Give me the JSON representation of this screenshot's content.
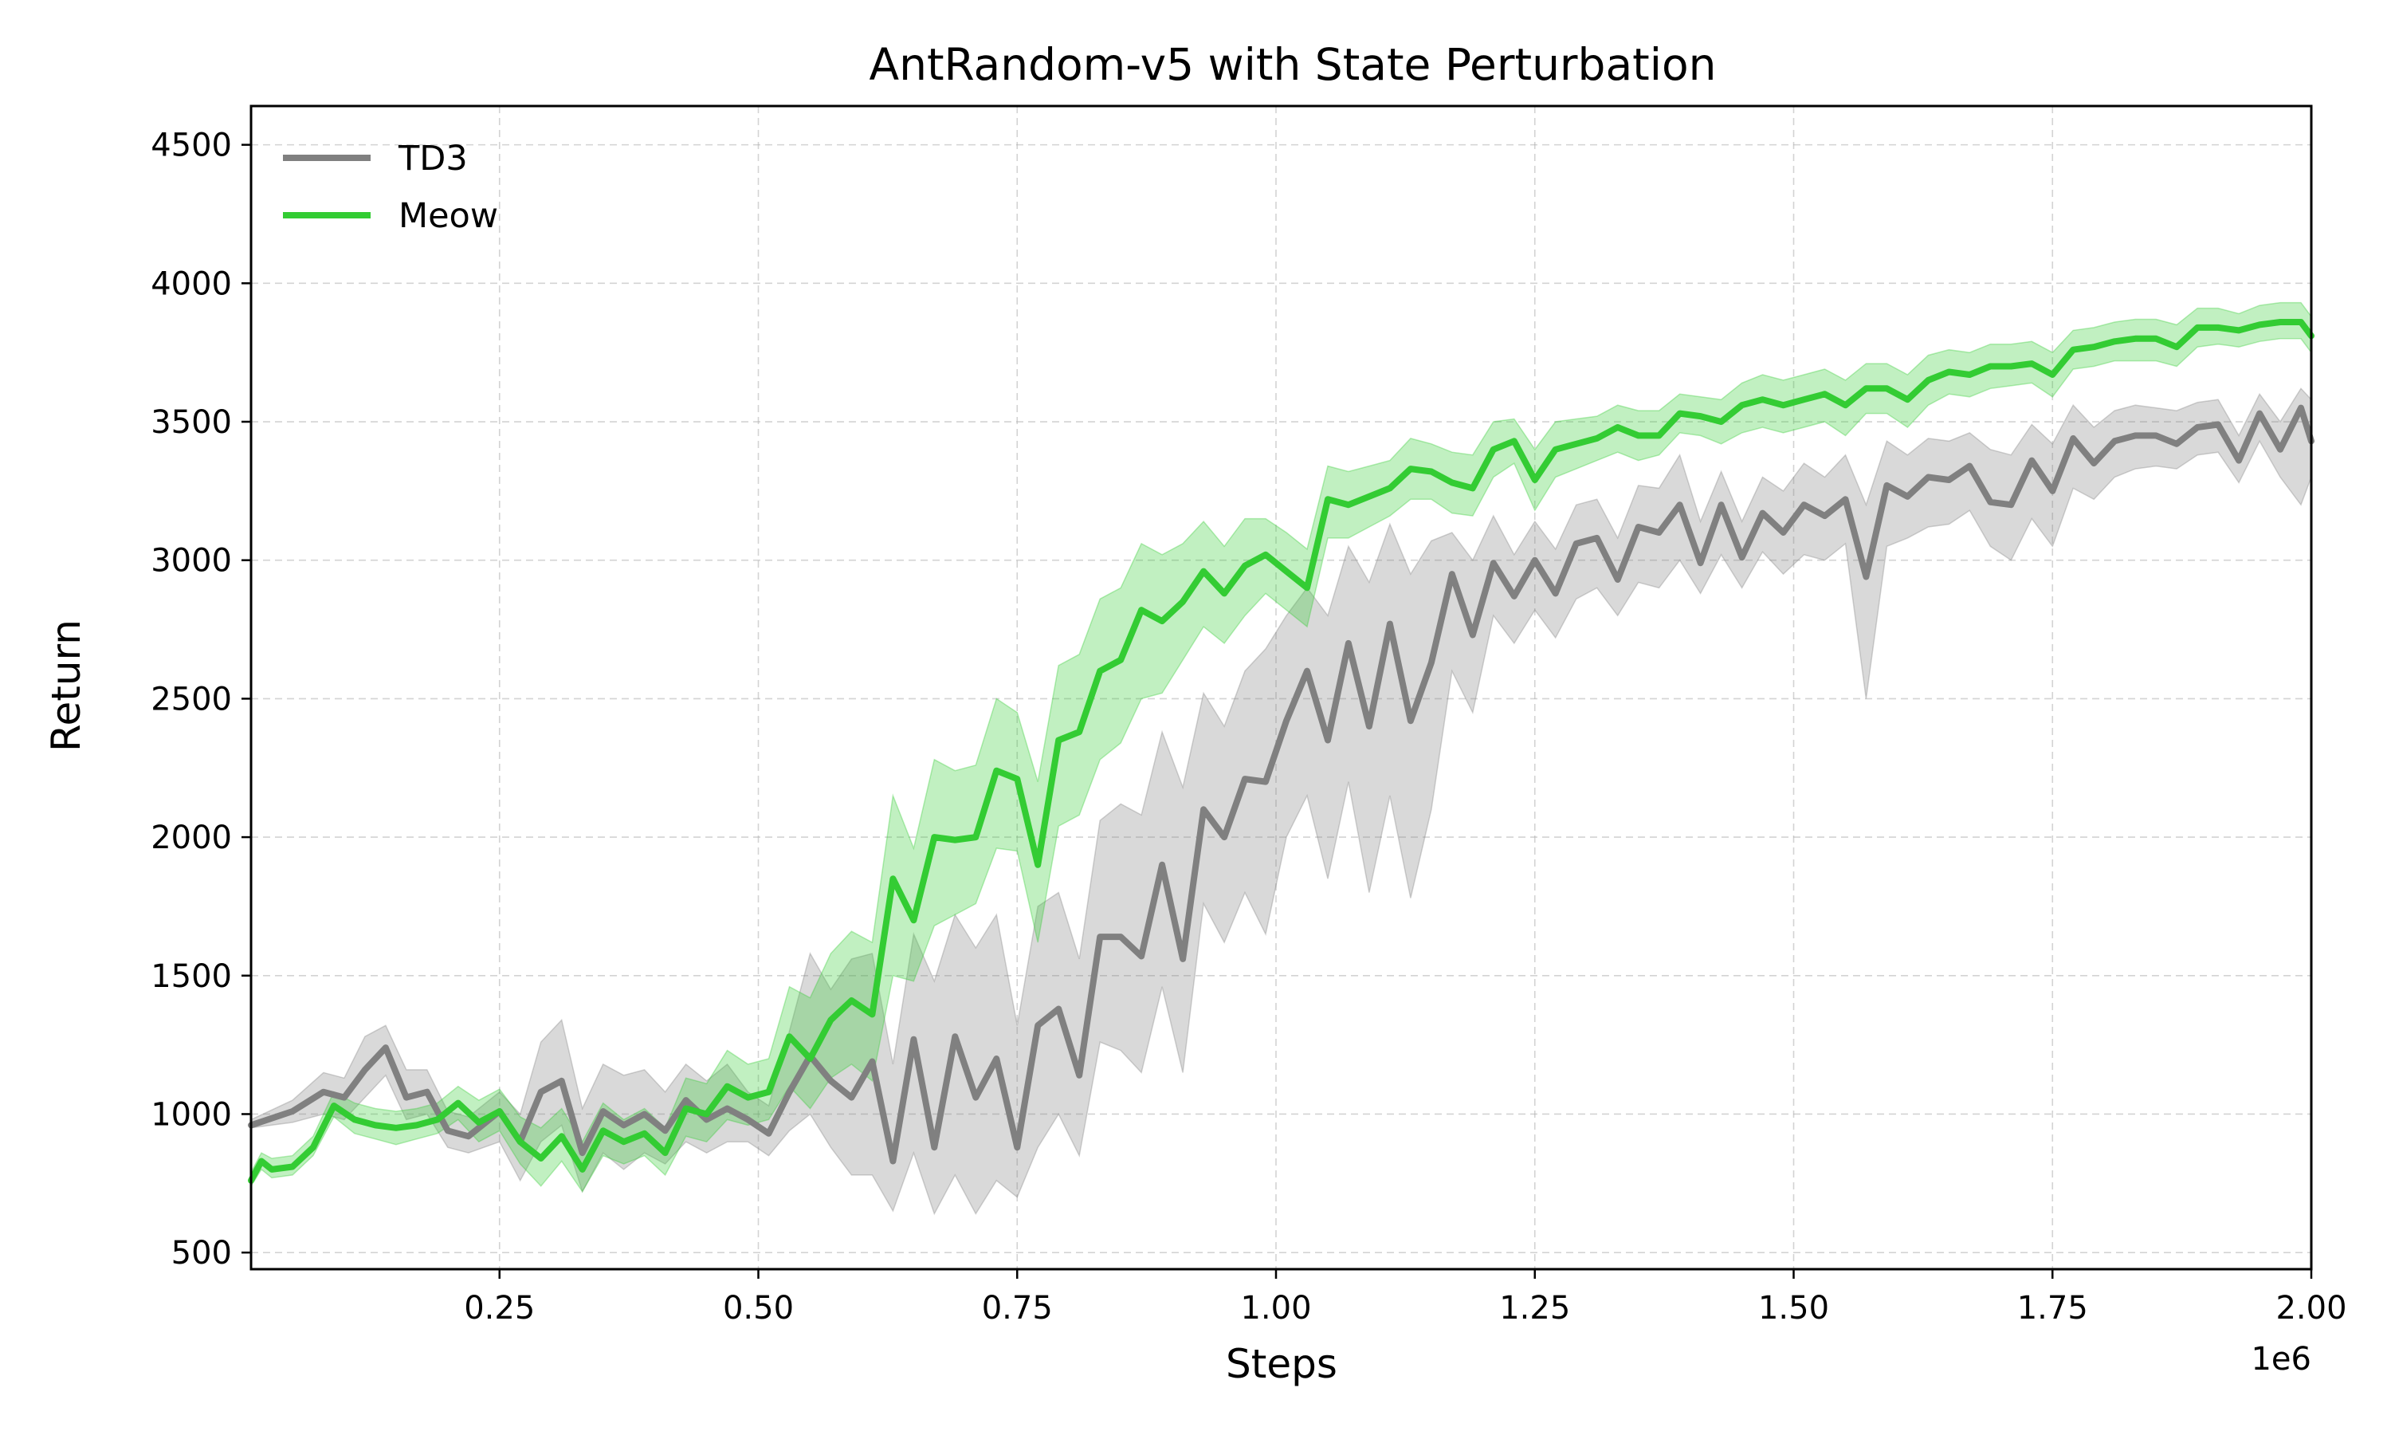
{
  "chart_data": {
    "type": "line",
    "title": "AntRandom-v5 with State Perturbation",
    "xlabel": "Steps",
    "ylabel": "Return",
    "x_offset_label": "1e6",
    "xlim": [
      0.01,
      2.0
    ],
    "ylim": [
      440,
      4640
    ],
    "xticks": [
      0.25,
      0.5,
      0.75,
      1.0,
      1.25,
      1.5,
      1.75,
      2.0
    ],
    "xtick_labels": [
      "0.25",
      "0.50",
      "0.75",
      "1.00",
      "1.25",
      "1.50",
      "1.75",
      "2.00"
    ],
    "yticks": [
      500,
      1000,
      1500,
      2000,
      2500,
      3000,
      3500,
      4000,
      4500
    ],
    "ytick_labels": [
      "500",
      "1000",
      "1500",
      "2000",
      "2500",
      "3000",
      "3500",
      "4000",
      "4500"
    ],
    "grid": true,
    "legend_position": "top-left",
    "series": [
      {
        "name": "TD3",
        "color": "#808080",
        "x": [
          0.01,
          0.05,
          0.08,
          0.1,
          0.12,
          0.14,
          0.16,
          0.18,
          0.2,
          0.22,
          0.25,
          0.27,
          0.29,
          0.31,
          0.33,
          0.35,
          0.37,
          0.39,
          0.41,
          0.43,
          0.45,
          0.47,
          0.49,
          0.51,
          0.53,
          0.55,
          0.57,
          0.59,
          0.61,
          0.63,
          0.65,
          0.67,
          0.69,
          0.71,
          0.73,
          0.75,
          0.77,
          0.79,
          0.81,
          0.83,
          0.85,
          0.87,
          0.89,
          0.91,
          0.93,
          0.95,
          0.97,
          0.99,
          1.01,
          1.03,
          1.05,
          1.07,
          1.09,
          1.11,
          1.13,
          1.15,
          1.17,
          1.19,
          1.21,
          1.23,
          1.25,
          1.27,
          1.29,
          1.31,
          1.33,
          1.35,
          1.37,
          1.39,
          1.41,
          1.43,
          1.45,
          1.47,
          1.49,
          1.51,
          1.53,
          1.55,
          1.57,
          1.59,
          1.61,
          1.63,
          1.65,
          1.67,
          1.69,
          1.71,
          1.73,
          1.75,
          1.77,
          1.79,
          1.81,
          1.83,
          1.85,
          1.87,
          1.89,
          1.91,
          1.93,
          1.95,
          1.97,
          1.99,
          2.0
        ],
        "y": [
          960,
          1010,
          1080,
          1060,
          1160,
          1240,
          1060,
          1080,
          940,
          920,
          1010,
          900,
          1080,
          1120,
          860,
          1010,
          960,
          1000,
          940,
          1050,
          980,
          1020,
          980,
          930,
          1080,
          1210,
          1120,
          1060,
          1190,
          830,
          1270,
          880,
          1280,
          1060,
          1200,
          880,
          1320,
          1380,
          1140,
          1640,
          1640,
          1570,
          1900,
          1560,
          2100,
          2000,
          2210,
          2200,
          2420,
          2600,
          2350,
          2700,
          2400,
          2770,
          2420,
          2630,
          2950,
          2730,
          2990,
          2870,
          3000,
          2880,
          3060,
          3080,
          2930,
          3120,
          3100,
          3200,
          2990,
          3200,
          3010,
          3170,
          3100,
          3200,
          3160,
          3220,
          2940,
          3270,
          3230,
          3300,
          3290,
          3340,
          3210,
          3200,
          3360,
          3250,
          3440,
          3350,
          3430,
          3450,
          3450,
          3420,
          3480,
          3490,
          3360,
          3530,
          3400,
          3550,
          3430
        ],
        "lower": [
          950,
          970,
          1000,
          980,
          1060,
          1140,
          980,
          1000,
          880,
          860,
          900,
          760,
          900,
          960,
          720,
          860,
          800,
          860,
          820,
          900,
          860,
          900,
          900,
          850,
          940,
          1000,
          880,
          780,
          780,
          650,
          860,
          640,
          780,
          640,
          760,
          700,
          880,
          1000,
          850,
          1260,
          1230,
          1150,
          1460,
          1150,
          1760,
          1620,
          1800,
          1650,
          2000,
          2150,
          1850,
          2200,
          1800,
          2150,
          1780,
          2100,
          2600,
          2450,
          2800,
          2700,
          2820,
          2720,
          2860,
          2900,
          2800,
          2920,
          2900,
          3000,
          2880,
          3020,
          2900,
          3030,
          2950,
          3020,
          3000,
          3060,
          2500,
          3050,
          3080,
          3120,
          3130,
          3180,
          3050,
          3000,
          3150,
          3050,
          3260,
          3220,
          3300,
          3330,
          3340,
          3330,
          3380,
          3390,
          3280,
          3430,
          3300,
          3200,
          3300
        ],
        "upper": [
          980,
          1050,
          1150,
          1130,
          1280,
          1320,
          1160,
          1160,
          1010,
          990,
          1080,
          1000,
          1260,
          1340,
          1020,
          1180,
          1140,
          1160,
          1080,
          1180,
          1120,
          1180,
          1080,
          1030,
          1300,
          1580,
          1450,
          1560,
          1580,
          1180,
          1650,
          1480,
          1720,
          1600,
          1720,
          1320,
          1750,
          1800,
          1560,
          2060,
          2120,
          2080,
          2380,
          2180,
          2520,
          2400,
          2600,
          2680,
          2800,
          2900,
          2800,
          3050,
          2920,
          3130,
          2950,
          3070,
          3100,
          3000,
          3160,
          3020,
          3140,
          3040,
          3200,
          3220,
          3080,
          3270,
          3260,
          3380,
          3140,
          3320,
          3140,
          3300,
          3250,
          3350,
          3300,
          3380,
          3200,
          3430,
          3380,
          3440,
          3430,
          3460,
          3400,
          3380,
          3490,
          3420,
          3560,
          3480,
          3540,
          3560,
          3550,
          3540,
          3570,
          3580,
          3450,
          3600,
          3500,
          3620,
          3580
        ]
      },
      {
        "name": "Meow",
        "color": "#33cc33",
        "x": [
          0.01,
          0.02,
          0.03,
          0.05,
          0.07,
          0.09,
          0.11,
          0.13,
          0.15,
          0.17,
          0.19,
          0.21,
          0.23,
          0.25,
          0.27,
          0.29,
          0.31,
          0.33,
          0.35,
          0.37,
          0.39,
          0.41,
          0.43,
          0.45,
          0.47,
          0.49,
          0.51,
          0.53,
          0.55,
          0.57,
          0.59,
          0.61,
          0.63,
          0.65,
          0.67,
          0.69,
          0.71,
          0.73,
          0.75,
          0.77,
          0.79,
          0.81,
          0.83,
          0.85,
          0.87,
          0.89,
          0.91,
          0.93,
          0.95,
          0.97,
          0.99,
          1.01,
          1.03,
          1.05,
          1.07,
          1.09,
          1.11,
          1.13,
          1.15,
          1.17,
          1.19,
          1.21,
          1.23,
          1.25,
          1.27,
          1.29,
          1.31,
          1.33,
          1.35,
          1.37,
          1.39,
          1.41,
          1.43,
          1.45,
          1.47,
          1.49,
          1.51,
          1.53,
          1.55,
          1.57,
          1.59,
          1.61,
          1.63,
          1.65,
          1.67,
          1.69,
          1.71,
          1.73,
          1.75,
          1.77,
          1.79,
          1.81,
          1.83,
          1.85,
          1.87,
          1.89,
          1.91,
          1.93,
          1.95,
          1.97,
          1.99,
          2.0
        ],
        "y": [
          760,
          830,
          800,
          810,
          880,
          1030,
          980,
          960,
          950,
          960,
          980,
          1040,
          970,
          1010,
          900,
          840,
          920,
          800,
          940,
          900,
          930,
          860,
          1020,
          1000,
          1100,
          1060,
          1080,
          1280,
          1200,
          1340,
          1410,
          1360,
          1850,
          1700,
          2000,
          1990,
          2000,
          2240,
          2210,
          1900,
          2350,
          2380,
          2600,
          2640,
          2820,
          2780,
          2850,
          2960,
          2880,
          2980,
          3020,
          2960,
          2900,
          3220,
          3200,
          3230,
          3260,
          3330,
          3320,
          3280,
          3260,
          3400,
          3430,
          3290,
          3400,
          3420,
          3440,
          3480,
          3450,
          3450,
          3530,
          3520,
          3500,
          3560,
          3580,
          3560,
          3580,
          3600,
          3560,
          3620,
          3620,
          3580,
          3650,
          3680,
          3670,
          3700,
          3700,
          3710,
          3670,
          3760,
          3770,
          3790,
          3800,
          3800,
          3770,
          3840,
          3840,
          3830,
          3850,
          3860,
          3860,
          3810
        ],
        "lower": [
          740,
          800,
          770,
          780,
          850,
          990,
          930,
          910,
          890,
          910,
          930,
          980,
          900,
          940,
          820,
          740,
          830,
          720,
          850,
          820,
          850,
          780,
          920,
          900,
          980,
          960,
          980,
          1100,
          1020,
          1130,
          1180,
          1120,
          1500,
          1480,
          1680,
          1720,
          1760,
          1960,
          1950,
          1620,
          2040,
          2080,
          2280,
          2340,
          2500,
          2520,
          2640,
          2760,
          2700,
          2800,
          2880,
          2820,
          2760,
          3080,
          3080,
          3120,
          3160,
          3220,
          3220,
          3170,
          3160,
          3300,
          3350,
          3180,
          3300,
          3330,
          3360,
          3390,
          3360,
          3380,
          3460,
          3450,
          3420,
          3460,
          3480,
          3460,
          3480,
          3500,
          3450,
          3530,
          3530,
          3480,
          3560,
          3600,
          3590,
          3620,
          3630,
          3640,
          3590,
          3690,
          3700,
          3720,
          3720,
          3720,
          3700,
          3770,
          3780,
          3770,
          3790,
          3800,
          3800,
          3750
        ],
        "upper": [
          790,
          860,
          840,
          850,
          920,
          1080,
          1040,
          1020,
          1010,
          1020,
          1040,
          1100,
          1050,
          1090,
          990,
          950,
          1020,
          900,
          1040,
          980,
          1020,
          950,
          1130,
          1110,
          1230,
          1180,
          1200,
          1460,
          1420,
          1580,
          1660,
          1620,
          2150,
          1960,
          2280,
          2240,
          2260,
          2500,
          2450,
          2200,
          2620,
          2660,
          2860,
          2900,
          3060,
          3020,
          3060,
          3140,
          3050,
          3150,
          3150,
          3100,
          3040,
          3340,
          3320,
          3340,
          3360,
          3440,
          3420,
          3390,
          3380,
          3500,
          3510,
          3400,
          3500,
          3510,
          3520,
          3560,
          3540,
          3540,
          3600,
          3590,
          3580,
          3640,
          3670,
          3650,
          3670,
          3690,
          3650,
          3710,
          3710,
          3670,
          3740,
          3760,
          3750,
          3780,
          3780,
          3790,
          3750,
          3830,
          3840,
          3860,
          3870,
          3870,
          3850,
          3910,
          3910,
          3890,
          3920,
          3930,
          3930,
          3880
        ]
      }
    ]
  }
}
